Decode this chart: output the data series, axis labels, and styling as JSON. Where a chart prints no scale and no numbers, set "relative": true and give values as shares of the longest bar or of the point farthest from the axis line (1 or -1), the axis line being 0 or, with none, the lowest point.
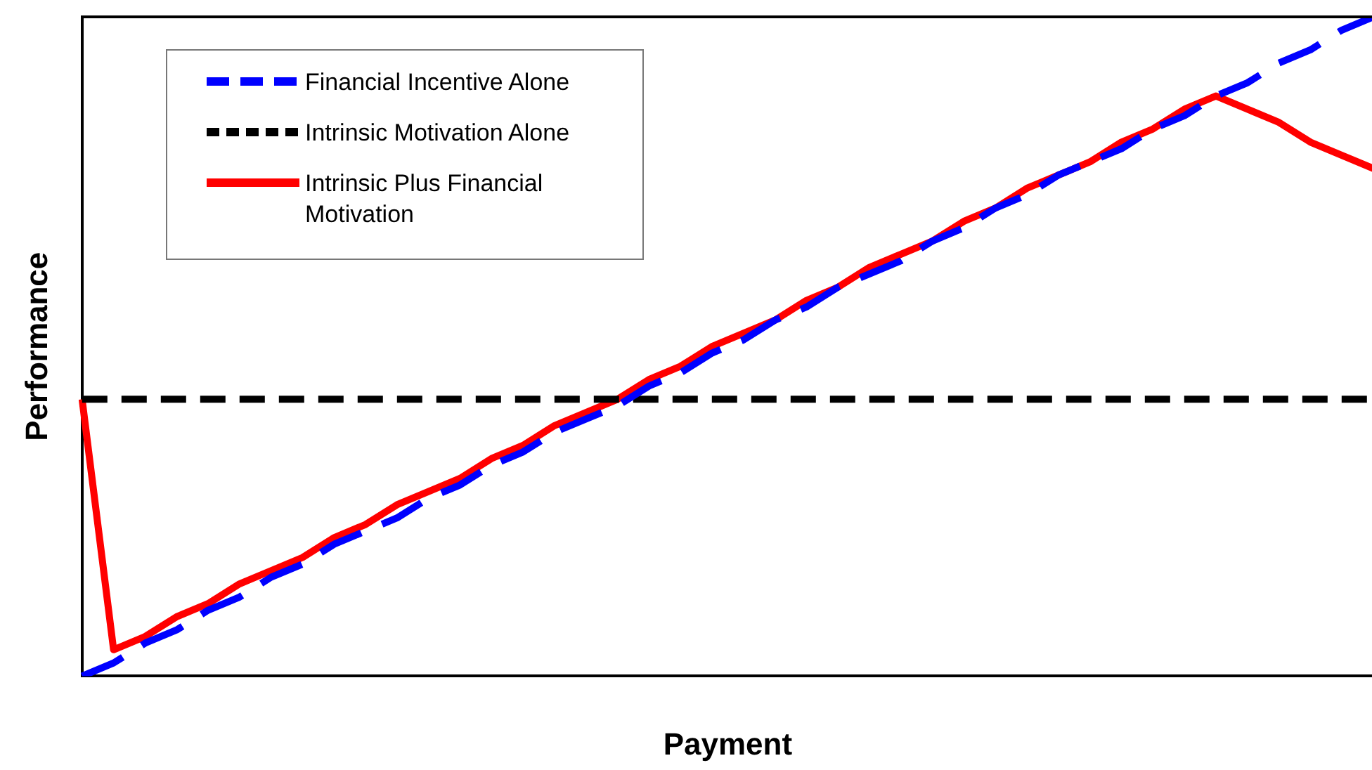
{
  "chart_data": {
    "type": "line",
    "relative": true,
    "xlabel": "Payment",
    "ylabel": "Performance",
    "legend": "top left",
    "grid": false,
    "marker": "none",
    "categories": [
      null,
      null,
      null,
      null,
      null,
      null,
      null,
      null,
      null,
      null,
      null,
      null,
      null,
      null,
      null,
      null,
      null,
      null,
      null,
      null,
      null,
      null,
      null,
      null,
      null,
      null,
      null,
      null,
      null,
      null,
      null,
      null,
      null,
      null,
      null,
      null,
      null,
      null,
      null,
      null,
      null,
      null
    ],
    "series": [
      {
        "name": "Financial Incentive Alone",
        "color": "#0000ff",
        "line_style": "dashed",
        "values": [
          0,
          0.02,
          0.05,
          0.07,
          0.1,
          0.12,
          0.15,
          0.17,
          0.2,
          0.22,
          0.24,
          0.27,
          0.29,
          0.32,
          0.34,
          0.37,
          0.39,
          0.41,
          0.44,
          0.46,
          0.49,
          0.51,
          0.54,
          0.56,
          0.59,
          0.61,
          0.63,
          0.66,
          0.68,
          0.71,
          0.73,
          0.76,
          0.78,
          0.8,
          0.83,
          0.85,
          0.88,
          0.9,
          0.93,
          0.95,
          0.98,
          1
        ]
      },
      {
        "name": "Intrinsic Motivation Alone",
        "color": "#000000",
        "line_style": "dotted",
        "values": [
          0.42,
          0.42,
          0.42,
          0.42,
          0.42,
          0.42,
          0.42,
          0.42,
          0.42,
          0.42,
          0.42,
          0.42,
          0.42,
          0.42,
          0.42,
          0.42,
          0.42,
          0.42,
          0.42,
          0.42,
          0.42,
          0.42,
          0.42,
          0.42,
          0.42,
          0.42,
          0.42,
          0.42,
          0.42,
          0.42,
          0.42,
          0.42,
          0.42,
          0.42,
          0.42,
          0.42,
          0.42,
          0.42,
          0.42,
          0.42,
          0.42,
          0.42
        ]
      },
      {
        "name": "Intrinsic Plus Financial Motivation",
        "color": "#ff0000",
        "line_style": "solid",
        "values": [
          0.42,
          0.04,
          0.06,
          0.09,
          0.11,
          0.14,
          0.16,
          0.18,
          0.21,
          0.23,
          0.26,
          0.28,
          0.3,
          0.33,
          0.35,
          0.38,
          0.4,
          0.42,
          0.45,
          0.47,
          0.5,
          0.52,
          0.54,
          0.57,
          0.59,
          0.62,
          0.64,
          0.66,
          0.69,
          0.71,
          0.74,
          0.76,
          0.78,
          0.81,
          0.83,
          0.86,
          0.88,
          0.86,
          0.84,
          0.81,
          0.79,
          0.77
        ]
      }
    ]
  }
}
